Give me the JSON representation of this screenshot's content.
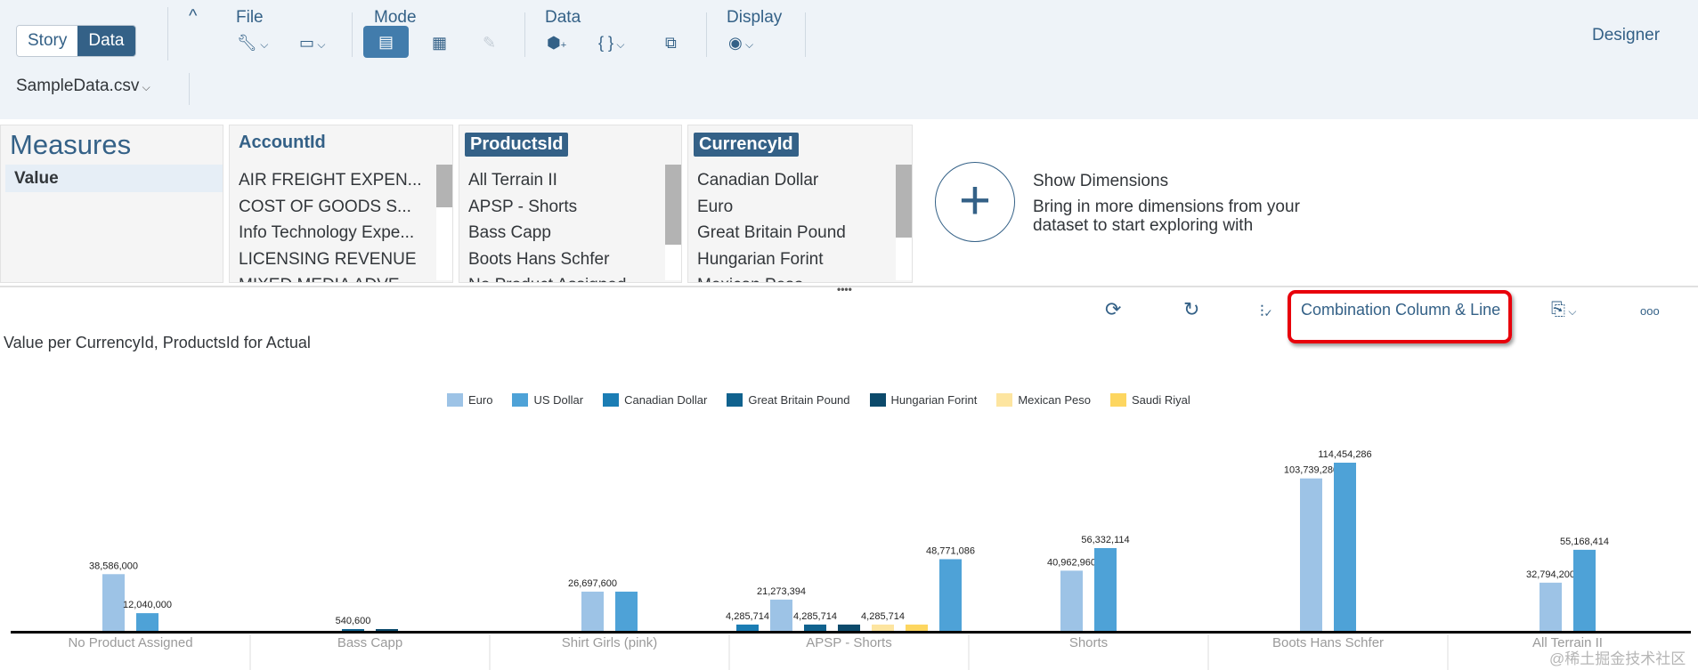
{
  "toolbar": {
    "toggle": [
      "Story",
      "Data"
    ],
    "file": "File",
    "mode": "Mode",
    "data": "Data",
    "display": "Display",
    "designer": "Designer",
    "dataset": "SampleData.csv"
  },
  "measures": {
    "title": "Measures",
    "items": [
      "Value"
    ]
  },
  "dimensions": [
    {
      "name": "AccountId",
      "selected": false,
      "items": [
        "AIR FREIGHT EXPEN...",
        "COST OF GOODS S...",
        "Info Technology Expe...",
        "LICENSING REVENUE",
        "MIXED MEDIA ADVE..."
      ]
    },
    {
      "name": "ProductsId",
      "selected": true,
      "items": [
        "All Terrain II",
        "APSP - Shorts",
        "Bass Capp",
        "Boots Hans Schfer",
        "No Product Assigned"
      ]
    },
    {
      "name": "CurrencyId",
      "selected": true,
      "items": [
        "Canadian Dollar",
        "Euro",
        "Great Britain Pound",
        "Hungarian Forint",
        "Mexican Peso"
      ]
    }
  ],
  "show_dimensions": {
    "title": "Show Dimensions",
    "text1": "Bring in more dimensions from your",
    "text2": "dataset to start exploring with"
  },
  "chart_toolbar": {
    "chart_type": "Combination Column & Line"
  },
  "watermark": "@稀土掘金技术社区",
  "chart_data": {
    "type": "bar",
    "title": "Value per CurrencyId, ProductsId for Actual",
    "legend_position": "top",
    "series": [
      {
        "name": "Euro",
        "color": "#9dc3e6"
      },
      {
        "name": "US Dollar",
        "color": "#4ea2d7"
      },
      {
        "name": "Canadian Dollar",
        "color": "#1b7db4"
      },
      {
        "name": "Great Britain Pound",
        "color": "#10628e"
      },
      {
        "name": "Hungarian Forint",
        "color": "#0c4a6b"
      },
      {
        "name": "Mexican Peso",
        "color": "#fde5a0"
      },
      {
        "name": "Saudi Riyal",
        "color": "#fdd660"
      }
    ],
    "categories": [
      {
        "name": "No Product Assigned",
        "bars": [
          {
            "series": "Euro",
            "value": 38586000,
            "label": "38,586,000"
          },
          {
            "series": "US Dollar",
            "value": 12040000,
            "label": "12,040,000"
          }
        ]
      },
      {
        "name": "Bass Capp",
        "bars": [
          {
            "series": "Great Britain Pound",
            "value": 540600,
            "label": "540,600"
          },
          {
            "series": "Hungarian Forint",
            "value": 540600,
            "label": null
          }
        ]
      },
      {
        "name": "Shirt Girls (pink)",
        "bars": [
          {
            "series": "Euro",
            "value": 26697600,
            "label": "26,697,600"
          },
          {
            "series": "US Dollar",
            "value": 26697600,
            "label": null
          }
        ]
      },
      {
        "name": "APSP - Shorts",
        "bars": [
          {
            "series": "Canadian Dollar",
            "value": 4285714,
            "label": "4,285,714"
          },
          {
            "series": "Euro",
            "value": 21273394,
            "label": "21,273,394"
          },
          {
            "series": "Great Britain Pound",
            "value": 4285714,
            "label": "4,285,714"
          },
          {
            "series": "Hungarian Forint",
            "value": 4285714,
            "label": null
          },
          {
            "series": "Mexican Peso",
            "value": 4285714,
            "label": "4,285,714"
          },
          {
            "series": "Saudi Riyal",
            "value": 4285714,
            "label": null
          },
          {
            "series": "US Dollar",
            "value": 48771086,
            "label": "48,771,086"
          }
        ]
      },
      {
        "name": "Shorts",
        "bars": [
          {
            "series": "Euro",
            "value": 40962960,
            "label": "40,962,960"
          },
          {
            "series": "US Dollar",
            "value": 56332114,
            "label": "56,332,114"
          }
        ]
      },
      {
        "name": "Boots Hans Schfer",
        "bars": [
          {
            "series": "Euro",
            "value": 103739280,
            "label": "103,739,280"
          },
          {
            "series": "US Dollar",
            "value": 114454286,
            "label": "114,454,286"
          }
        ]
      },
      {
        "name": "All Terrain II",
        "bars": [
          {
            "series": "Euro",
            "value": 32794200,
            "label": "32,794,200"
          },
          {
            "series": "US Dollar",
            "value": 55168414,
            "label": "55,168,414"
          }
        ]
      }
    ],
    "ylim": [
      0,
      114454286
    ]
  }
}
